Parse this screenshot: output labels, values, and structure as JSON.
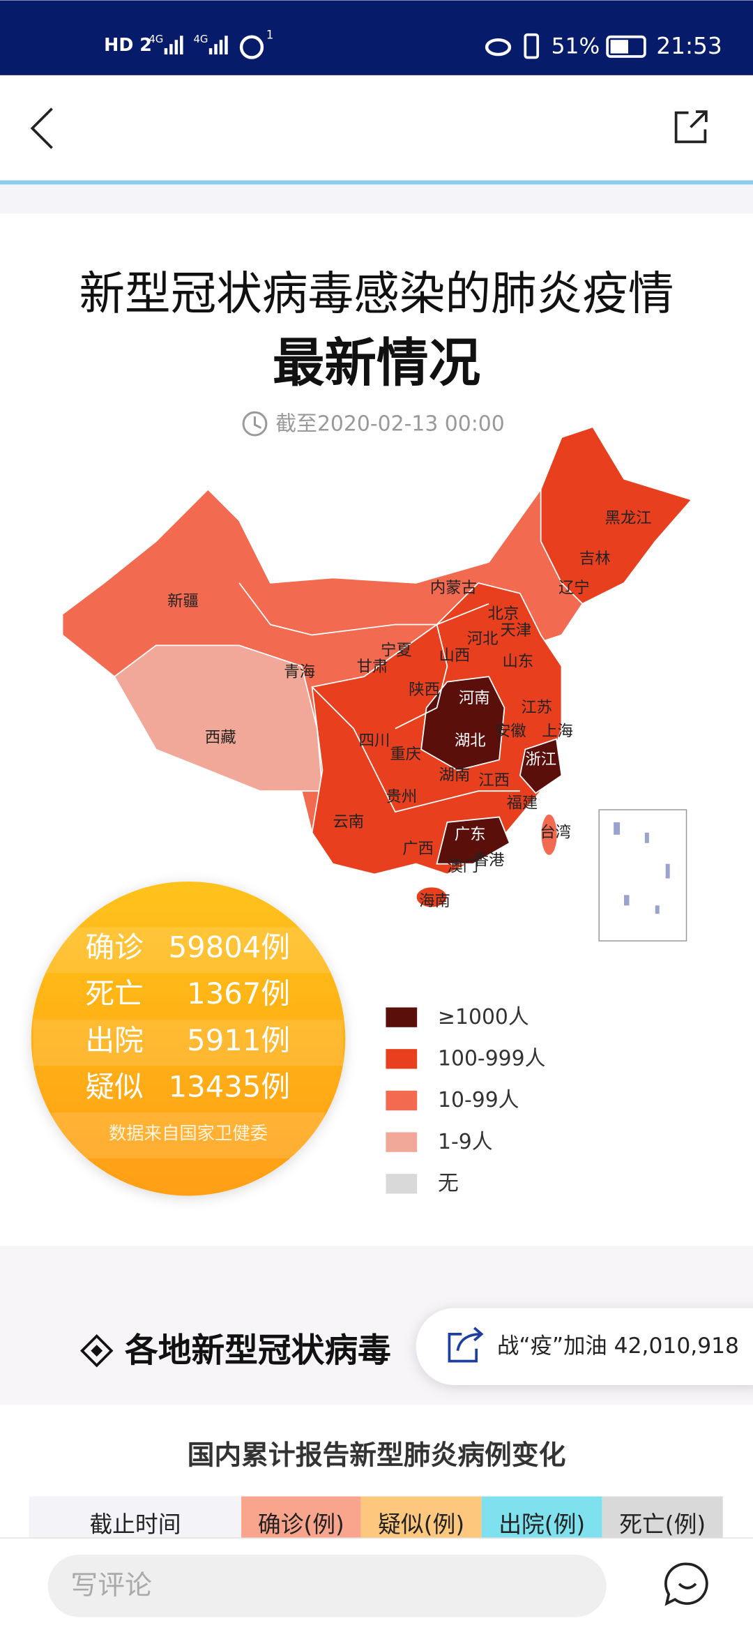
{
  "status_bar": {
    "network": "HD 2",
    "signal_1": "4G",
    "signal_2": "4G",
    "hotspot": "1",
    "battery": "51%",
    "time": "21:53"
  },
  "article": {
    "title_line1": "新型冠状病毒感染的肺炎疫情",
    "title_line2": "最新情况",
    "timestamp": "截至2020-02-13 00:00"
  },
  "map": {
    "provinces": [
      "黑龙江",
      "吉林",
      "辽宁",
      "内蒙古",
      "新疆",
      "北京",
      "天津",
      "河北",
      "宁夏",
      "甘肃",
      "山西",
      "山东",
      "青海",
      "陕西",
      "河南",
      "江苏",
      "西藏",
      "四川",
      "安徽",
      "上海",
      "湖北",
      "重庆",
      "浙江",
      "湖南",
      "江西",
      "贵州",
      "福建",
      "云南",
      "台湾",
      "广西",
      "广东",
      "澳门",
      "香港",
      "海南"
    ]
  },
  "summary": {
    "rows": [
      {
        "label": "确诊",
        "value": "59804例"
      },
      {
        "label": "死亡",
        "value": "1367例"
      },
      {
        "label": "出院",
        "value": "5911例"
      },
      {
        "label": "疑似",
        "value": "13435例"
      }
    ],
    "source": "数据来自国家卫健委"
  },
  "legend": [
    {
      "label": "≥1000人",
      "color": "#5a0f0a"
    },
    {
      "label": "100-999人",
      "color": "#e8401e"
    },
    {
      "label": "10-99人",
      "color": "#f26a50"
    },
    {
      "label": "1-9人",
      "color": "#f2a898"
    },
    {
      "label": "无",
      "color": "#d9d9d9"
    }
  ],
  "section": {
    "title": "各地新型冠状病毒"
  },
  "floating_button": {
    "label": "战“疫”加油 42,010,918"
  },
  "table": {
    "title": "国内累计报告新型肺炎病例变化",
    "headers": [
      "截止时间",
      "确诊(例)",
      "疑似(例)",
      "出院(例)",
      "死亡(例)"
    ]
  },
  "comment_bar": {
    "placeholder": "写评论"
  }
}
